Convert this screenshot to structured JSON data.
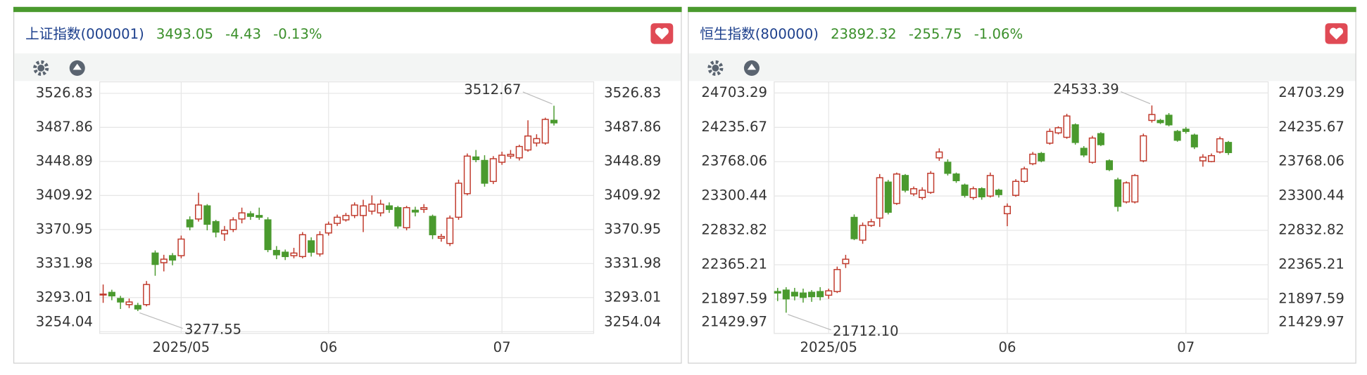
{
  "chart_data": [
    {
      "type": "candlestick",
      "title": "上证指数(000001)",
      "price": 3493.05,
      "change": -4.43,
      "change_pct": "-0.13%",
      "categories": [
        null,
        null,
        null,
        null,
        null,
        null,
        null,
        null,
        null,
        "2025/05",
        null,
        null,
        null,
        null,
        null,
        null,
        null,
        null,
        null,
        null,
        null,
        null,
        null,
        null,
        null,
        null,
        "06",
        null,
        null,
        null,
        null,
        null,
        null,
        null,
        null,
        null,
        null,
        null,
        null,
        null,
        null,
        null,
        null,
        null,
        null,
        null,
        "07",
        null,
        null,
        null,
        null,
        null,
        null
      ],
      "open": [
        3296,
        3299,
        3292,
        3285,
        3284,
        3285,
        3344,
        3333,
        3341,
        3341,
        3382,
        3383,
        3398,
        3380,
        3366,
        3371,
        3383,
        3389,
        3387,
        3382,
        3347,
        3345,
        3341,
        3340,
        3358,
        3343,
        3367,
        3378,
        3382,
        3387,
        3387,
        3392,
        3390,
        3398,
        3396,
        3373,
        3393,
        3394,
        3386,
        3361,
        3355,
        3385,
        3412,
        3454,
        3450,
        3426,
        3448,
        3455,
        3453,
        3462,
        3470,
        3470,
        3496
      ],
      "high": [
        3308,
        3302,
        3295,
        3292,
        3287,
        3312,
        3347,
        3342,
        3344,
        3364,
        3386,
        3413,
        3400,
        3382,
        3375,
        3385,
        3396,
        3392,
        3396,
        3385,
        3352,
        3348,
        3350,
        3368,
        3362,
        3369,
        3380,
        3388,
        3390,
        3402,
        3405,
        3410,
        3405,
        3402,
        3398,
        3398,
        3397,
        3400,
        3388,
        3366,
        3387,
        3428,
        3458,
        3462,
        3456,
        3455,
        3460,
        3462,
        3468,
        3496,
        3480,
        3499,
        3512.67
      ],
      "low": [
        3287,
        3290,
        3280,
        3281,
        3277.55,
        3283,
        3318,
        3323,
        3330,
        3338,
        3370,
        3380,
        3370,
        3362,
        3358,
        3368,
        3378,
        3382,
        3382,
        3345,
        3337,
        3336,
        3338,
        3338,
        3340,
        3340,
        3364,
        3375,
        3380,
        3384,
        3368,
        3388,
        3386,
        3390,
        3372,
        3370,
        3386,
        3390,
        3360,
        3357,
        3352,
        3382,
        3410,
        3448,
        3420,
        3423,
        3445,
        3452,
        3450,
        3460,
        3466,
        3468,
        3490
      ],
      "close": [
        3297,
        3295,
        3288,
        3288,
        3280,
        3308,
        3331,
        3337,
        3336,
        3360,
        3374,
        3399,
        3377,
        3368,
        3370,
        3382,
        3390,
        3386,
        3385,
        3348,
        3342,
        3340,
        3344,
        3365,
        3345,
        3365,
        3377,
        3385,
        3387,
        3399,
        3398,
        3400,
        3400,
        3394,
        3375,
        3396,
        3391,
        3396,
        3365,
        3363,
        3384,
        3424,
        3455,
        3451,
        3424,
        3452,
        3456,
        3457,
        3466,
        3478,
        3475,
        3497,
        3493.05
      ],
      "high_label": "3512.67",
      "low_label": "3277.55",
      "ylim": [
        3252,
        3540
      ],
      "yticks": [
        3254.04,
        3293.01,
        3331.98,
        3370.95,
        3409.92,
        3448.89,
        3487.86,
        3526.83
      ],
      "up_color": "#c0392b",
      "down_color": "#4a9a2e",
      "grid": true
    },
    {
      "type": "candlestick",
      "title": "恒生指数(800000)",
      "price": 23892.32,
      "change": -255.75,
      "change_pct": "-1.06%",
      "categories": [
        null,
        null,
        null,
        null,
        null,
        null,
        "2025/05",
        null,
        null,
        null,
        null,
        null,
        null,
        null,
        null,
        null,
        null,
        null,
        null,
        null,
        null,
        null,
        null,
        null,
        null,
        null,
        null,
        "06",
        null,
        null,
        null,
        null,
        null,
        null,
        null,
        null,
        null,
        null,
        null,
        null,
        null,
        null,
        null,
        null,
        null,
        null,
        null,
        null,
        "07",
        null,
        null,
        null,
        null,
        null
      ],
      "open": [
        22000,
        22020,
        21990,
        21980,
        21990,
        22000,
        21950,
        22000,
        22380,
        23010,
        22700,
        22900,
        23000,
        23490,
        23200,
        23580,
        23330,
        23280,
        23350,
        23820,
        23760,
        23600,
        23450,
        23280,
        23400,
        23300,
        23380,
        23060,
        23310,
        23500,
        23740,
        23880,
        24020,
        24160,
        24100,
        24270,
        23950,
        23760,
        24150,
        23780,
        23520,
        23220,
        23220,
        23780,
        24330,
        24330,
        24400,
        24180,
        24210,
        24130,
        23780,
        23770,
        23900,
        24030
      ],
      "high": [
        22050,
        22060,
        22050,
        22040,
        22020,
        22060,
        22040,
        22340,
        22500,
        23050,
        22940,
        22990,
        23600,
        23520,
        23620,
        23600,
        23430,
        23420,
        23640,
        23950,
        23800,
        23620,
        23470,
        23430,
        23420,
        23620,
        23400,
        23200,
        23530,
        23700,
        23900,
        23900,
        24220,
        24250,
        24420,
        24290,
        23980,
        24120,
        24170,
        23800,
        23550,
        23500,
        23600,
        24150,
        24533.39,
        24350,
        24430,
        24200,
        24240,
        24150,
        23870,
        23880,
        24110,
        24050
      ],
      "low": [
        21870,
        21712.1,
        21880,
        21850,
        21860,
        21880,
        21900,
        21980,
        22320,
        22700,
        22650,
        22880,
        22880,
        23050,
        23180,
        23350,
        23300,
        23250,
        23330,
        23780,
        23580,
        23480,
        23280,
        23250,
        23250,
        23280,
        23280,
        22890,
        23290,
        23480,
        23720,
        23760,
        24000,
        24140,
        24080,
        24000,
        23830,
        23740,
        23980,
        23640,
        23090,
        23200,
        23200,
        23760,
        24300,
        24280,
        24250,
        24040,
        24150,
        23940,
        23700,
        23760,
        23880,
        23860
      ],
      "close": [
        21980,
        21900,
        21940,
        21920,
        21930,
        21930,
        22010,
        22300,
        22440,
        22720,
        22900,
        22950,
        23550,
        23080,
        23600,
        23380,
        23400,
        23380,
        23610,
        23900,
        23610,
        23510,
        23310,
        23400,
        23290,
        23580,
        23320,
        23160,
        23500,
        23670,
        23870,
        23780,
        24180,
        24230,
        24390,
        24030,
        23860,
        24090,
        24000,
        23660,
        23160,
        23480,
        23580,
        24120,
        24410,
        24300,
        24270,
        24060,
        24180,
        23970,
        23830,
        23850,
        24080,
        23892.32
      ],
      "high_label": "24533.39",
      "low_label": "21712.10",
      "ylim": [
        21430,
        24855
      ],
      "yticks": [
        21429.97,
        21897.59,
        22365.21,
        22832.82,
        23300.44,
        23768.06,
        24235.67,
        24703.29
      ],
      "up_color": "#c0392b",
      "down_color": "#4a9a2e",
      "grid": true
    }
  ]
}
